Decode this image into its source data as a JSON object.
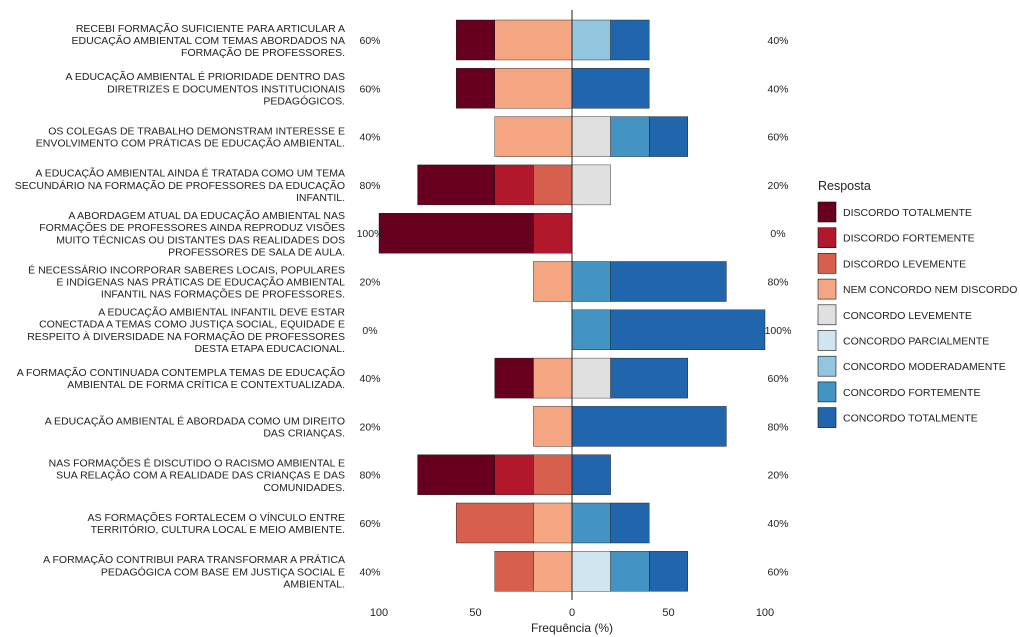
{
  "chart_data": {
    "type": "bar",
    "subtype": "diverging-stacked-likert",
    "xlabel": "Frequência (%)",
    "x_ticks": [
      "100",
      "50",
      "0",
      "50",
      "100"
    ],
    "xlim": [
      -100,
      100
    ],
    "legend_title": "Resposta",
    "legend_position": "right",
    "levels": [
      {
        "name": "DISCORDO TOTALMENTE",
        "color": "#67001f",
        "side": "negative"
      },
      {
        "name": "DISCORDO FORTEMENTE",
        "color": "#b2182b",
        "side": "negative"
      },
      {
        "name": "DISCORDO LEVEMENTE",
        "color": "#d6604d",
        "side": "negative"
      },
      {
        "name": "NEM CONCORDO NEM DISCORDO",
        "color": "#f4a582",
        "side": "negative"
      },
      {
        "name": "CONCORDO LEVEMENTE",
        "color": "#e0e0e0",
        "side": "positive"
      },
      {
        "name": "CONCORDO PARCIALMENTE",
        "color": "#d1e5f0",
        "side": "positive"
      },
      {
        "name": "CONCORDO MODERADAMENTE",
        "color": "#92c5de",
        "side": "positive"
      },
      {
        "name": "CONCORDO FORTEMENTE",
        "color": "#4393c3",
        "side": "positive"
      },
      {
        "name": "CONCORDO TOTALMENTE",
        "color": "#2166ac",
        "side": "positive"
      }
    ],
    "items": [
      {
        "label": "RECEBI FORMAÇÃO SUFICIENTE PARA ARTICULAR A\nEDUCAÇÃO AMBIENTAL COM TEMAS ABORDADOS NA\nFORMAÇÃO DE PROFESSORES.",
        "left_pct": "60%",
        "right_pct": "40%",
        "values": [
          20,
          0,
          0,
          40,
          0,
          0,
          20,
          0,
          20
        ]
      },
      {
        "label": "A EDUCAÇÃO AMBIENTAL É PRIORIDADE DENTRO DAS\nDIRETRIZES E DOCUMENTOS INSTITUCIONAIS\nPEDAGÓGICOS.",
        "left_pct": "60%",
        "right_pct": "40%",
        "values": [
          20,
          0,
          0,
          40,
          0,
          0,
          0,
          0,
          40
        ]
      },
      {
        "label": "OS COLEGAS DE TRABALHO DEMONSTRAM INTERESSE E\nENVOLVIMENTO COM PRÁTICAS DE EDUCAÇÃO AMBIENTAL.",
        "left_pct": "40%",
        "right_pct": "60%",
        "values": [
          0,
          0,
          0,
          40,
          20,
          0,
          0,
          20,
          20
        ]
      },
      {
        "label": "A EDUCAÇÃO AMBIENTAL AINDA É TRATADA COMO UM TEMA\nSECUNDÁRIO NA FORMAÇÃO DE PROFESSORES DA EDUCAÇÃO\nINFANTIL.",
        "left_pct": "80%",
        "right_pct": "20%",
        "values": [
          40,
          20,
          20,
          0,
          20,
          0,
          0,
          0,
          0
        ]
      },
      {
        "label": "A ABORDAGEM ATUAL DA EDUCAÇÃO AMBIENTAL NAS\nFORMAÇÕES DE PROFESSORES AINDA REPRODUZ VISÕES\nMUITO TÉCNICAS OU DISTANTES DAS REALIDADES DOS\nPROFESSORES DE SALA DE AULA.",
        "left_pct": "100%",
        "right_pct": "0%",
        "values": [
          80,
          20,
          0,
          0,
          0,
          0,
          0,
          0,
          0
        ]
      },
      {
        "label": "É NECESSÁRIO INCORPORAR SABERES LOCAIS, POPULARES\nE INDÍGENAS NAS PRÁTICAS DE EDUCAÇÃO AMBIENTAL\nINFANTIL NAS FORMAÇÕES DE PROFESSORES.",
        "left_pct": "20%",
        "right_pct": "80%",
        "values": [
          0,
          0,
          0,
          20,
          0,
          0,
          0,
          20,
          60
        ]
      },
      {
        "label": "A EDUCAÇÃO AMBIENTAL INFANTIL DEVE ESTAR\nCONECTADA A TEMAS COMO JUSTIÇA SOCIAL, EQUIDADE E\nRESPEITO À DIVERSIDADE NA FORMAÇÃO DE PROFESSORES\nDESTA ETAPA EDUCACIONAL.",
        "left_pct": "0%",
        "right_pct": "100%",
        "values": [
          0,
          0,
          0,
          0,
          0,
          0,
          0,
          20,
          80
        ]
      },
      {
        "label": "A FORMAÇÃO CONTINUADA CONTEMPLA TEMAS DE EDUCAÇÃO\nAMBIENTAL DE FORMA CRÍTICA E CONTEXTUALIZADA.",
        "left_pct": "40%",
        "right_pct": "60%",
        "values": [
          20,
          0,
          0,
          20,
          20,
          0,
          0,
          0,
          40
        ]
      },
      {
        "label": "A EDUCAÇÃO AMBIENTAL É ABORDADA COMO UM DIREITO\nDAS CRIANÇAS.",
        "left_pct": "20%",
        "right_pct": "80%",
        "values": [
          0,
          0,
          0,
          20,
          0,
          0,
          0,
          0,
          80
        ]
      },
      {
        "label": "NAS FORMAÇÕES É DISCUTIDO O RACISMO AMBIENTAL E\nSUA RELAÇÃO COM A REALIDADE DAS CRIANÇAS E DAS\nCOMUNIDADES.",
        "left_pct": "80%",
        "right_pct": "20%",
        "values": [
          40,
          20,
          20,
          0,
          0,
          0,
          0,
          0,
          20
        ]
      },
      {
        "label": "AS FORMAÇÕES FORTALECEM O VÍNCULO ENTRE\nTERRITÓRIO, CULTURA LOCAL E MEIO AMBIENTE.",
        "left_pct": "60%",
        "right_pct": "40%",
        "values": [
          0,
          0,
          40,
          20,
          0,
          0,
          0,
          20,
          20
        ]
      },
      {
        "label": "A FORMAÇÃO CONTRIBUI PARA TRANSFORMAR A PRÁTICA\nPEDAGÓGICA COM BASE EM JUSTIÇA SOCIAL E\nAMBIENTAL.",
        "left_pct": "40%",
        "right_pct": "60%",
        "values": [
          0,
          0,
          20,
          20,
          0,
          20,
          0,
          20,
          20
        ]
      }
    ]
  }
}
